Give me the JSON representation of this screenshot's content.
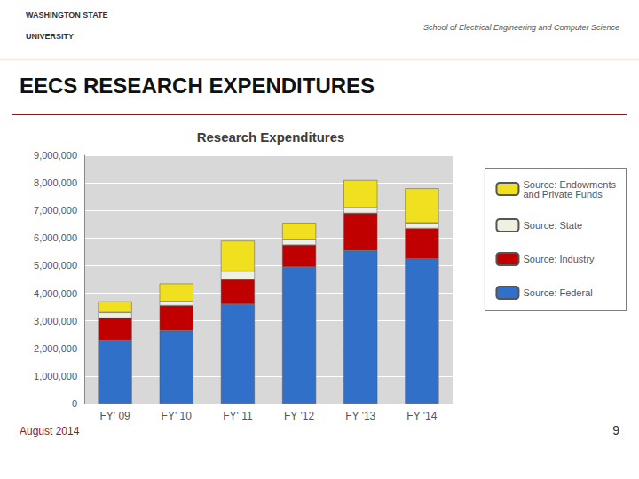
{
  "chart_data": {
    "type": "bar",
    "title": "Research Expenditures",
    "categories": [
      "FY' 09",
      "FY' 10",
      "FY' 11",
      "FY '12",
      "FY '13",
      "FY '14"
    ],
    "series": [
      {
        "name": "Source: Federal",
        "color": "#3070C8",
        "values": [
          2300000,
          2650000,
          3600000,
          4950000,
          5550000,
          5250000
        ]
      },
      {
        "name": "Source: Industry",
        "color": "#C00000",
        "values": [
          800000,
          900000,
          900000,
          800000,
          1350000,
          1100000
        ]
      },
      {
        "name": "Source: State",
        "color": "#F0F0E0",
        "values": [
          200000,
          150000,
          300000,
          200000,
          200000,
          200000
        ]
      },
      {
        "name": "Source: Endowments\nand Private Funds",
        "color": "#F0E020",
        "values": [
          400000,
          650000,
          1100000,
          600000,
          1000000,
          1250000
        ]
      }
    ],
    "stacked": true,
    "ylim": [
      0,
      9000000
    ],
    "yticks": [
      0,
      {
        "value": 1000000,
        "label": "1,000,000"
      },
      {
        "value": 2000000,
        "label": "2,000,000"
      },
      {
        "value": 3000000,
        "label": "3,000,000"
      },
      {
        "value": 4000000,
        "label": "4,000,000"
      },
      {
        "value": 5000000,
        "label": "5,000,000"
      },
      {
        "value": 6000000,
        "label": "6,000,000"
      },
      {
        "value": 7000000,
        "label": "7,000,000"
      },
      {
        "value": 8000000,
        "label": "8,000,000"
      },
      {
        "value": 9000000,
        "label": "9,000,000"
      }
    ],
    "grid": true,
    "legend": "right",
    "annotations": [
      "WASHINGTON STATE",
      "UNIVERSITY",
      "School of Electrical Engineering and Computer Science",
      "EECS RESEARCH EXPENDITURES",
      "August 2014",
      "9"
    ]
  }
}
